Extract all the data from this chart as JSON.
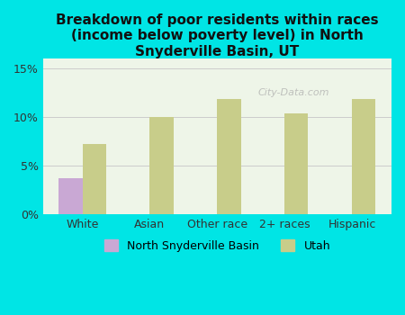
{
  "title": "Breakdown of poor residents within races\n(income below poverty level) in North\nSnyderville Basin, UT",
  "categories": [
    "White",
    "Asian",
    "Other race",
    "2+ races",
    "Hispanic"
  ],
  "nsb_values": [
    3.7,
    0,
    0,
    0,
    0
  ],
  "utah_values": [
    7.2,
    10.0,
    11.8,
    10.3,
    11.8
  ],
  "nsb_color": "#c9a8d4",
  "utah_color": "#c8cd8a",
  "background_color": "#00e5e5",
  "plot_bg_color": "#eef5e8",
  "yticks": [
    0,
    5,
    10,
    15
  ],
  "ylim": [
    0,
    16
  ],
  "bar_width": 0.35,
  "legend_labels": [
    "North Snyderville Basin",
    "Utah"
  ],
  "title_fontsize": 11,
  "tick_fontsize": 9,
  "legend_fontsize": 9,
  "grid_color": "#cccccc"
}
